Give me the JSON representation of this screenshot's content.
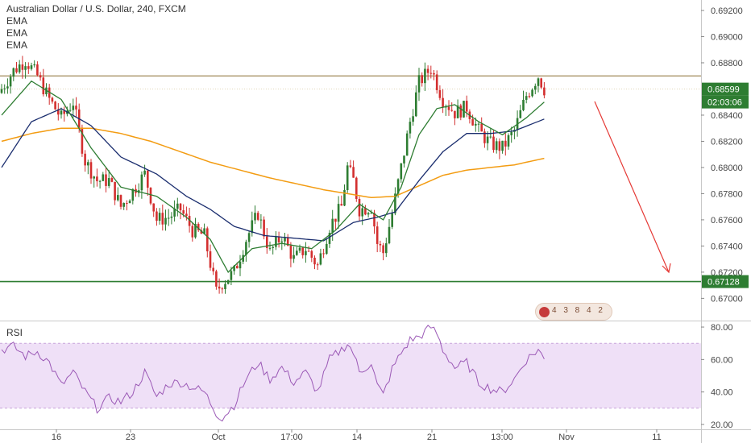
{
  "legend": {
    "title": "Australian Dollar / U.S. Dollar, 240, FXCM",
    "ema1": "EMA",
    "ema2": "EMA",
    "ema3": "EMA"
  },
  "rsi_label": "RSI",
  "calendar_text": "4 3 8 4 2",
  "colors": {
    "up": "#2e7d32",
    "down": "#d32f2f",
    "ema_fast": "#2e7d32",
    "ema_mid": "#1a2d6e",
    "ema_slow": "#f39c12",
    "support": "#2e7d32",
    "resistance": "#a08a5a",
    "arrow": "#e53935",
    "rsi_line": "#9b59b6",
    "rsi_band": "#efe0f7"
  },
  "badges": {
    "last_price": "0.68599",
    "countdown": "02:03:06",
    "support_level": "0.67128"
  },
  "chart_data": [
    {
      "type": "candlestick",
      "title": "Australian Dollar / U.S. Dollar, 240, FXCM",
      "ylim": [
        0.6683,
        0.6928
      ],
      "yticks": [
        "0.69200",
        "0.69000",
        "0.68800",
        "0.68400",
        "0.68200",
        "0.68000",
        "0.67800",
        "0.67600",
        "0.67400",
        "0.67200",
        "0.67000"
      ],
      "x_ticks": [
        "16",
        "23",
        "Oct",
        "17:00",
        "14",
        "21",
        "13:00",
        "Nov",
        "11"
      ],
      "resistance_level": 0.687,
      "support_level": 0.67128,
      "last_price": 0.68599,
      "anchors": [
        [
          0,
          0.686
        ],
        [
          4,
          0.6874
        ],
        [
          8,
          0.6882
        ],
        [
          12,
          0.687
        ],
        [
          16,
          0.6852
        ],
        [
          20,
          0.6838
        ],
        [
          24,
          0.685
        ],
        [
          28,
          0.6805
        ],
        [
          32,
          0.679
        ],
        [
          36,
          0.679
        ],
        [
          40,
          0.677
        ],
        [
          44,
          0.6782
        ],
        [
          48,
          0.6795
        ],
        [
          52,
          0.676
        ],
        [
          56,
          0.6762
        ],
        [
          60,
          0.6768
        ],
        [
          64,
          0.6752
        ],
        [
          68,
          0.6748
        ],
        [
          72,
          0.6705
        ],
        [
          74,
          0.6712
        ],
        [
          78,
          0.672
        ],
        [
          82,
          0.6745
        ],
        [
          86,
          0.6765
        ],
        [
          90,
          0.6735
        ],
        [
          94,
          0.6748
        ],
        [
          98,
          0.673
        ],
        [
          102,
          0.6738
        ],
        [
          106,
          0.6725
        ],
        [
          110,
          0.6755
        ],
        [
          114,
          0.677
        ],
        [
          116,
          0.68
        ],
        [
          118,
          0.679
        ],
        [
          120,
          0.6768
        ],
        [
          124,
          0.677
        ],
        [
          126,
          0.6742
        ],
        [
          128,
          0.6735
        ],
        [
          131,
          0.6765
        ],
        [
          134,
          0.68
        ],
        [
          137,
          0.6835
        ],
        [
          140,
          0.6865
        ],
        [
          144,
          0.6876
        ],
        [
          148,
          0.6852
        ],
        [
          152,
          0.6842
        ],
        [
          156,
          0.6846
        ],
        [
          160,
          0.6828
        ],
        [
          164,
          0.6818
        ],
        [
          168,
          0.6815
        ],
        [
          172,
          0.6828
        ],
        [
          176,
          0.6855
        ],
        [
          180,
          0.687
        ],
        [
          182,
          0.686
        ]
      ],
      "ema_fast": [
        [
          0,
          0.684
        ],
        [
          10,
          0.6866
        ],
        [
          20,
          0.6852
        ],
        [
          30,
          0.6815
        ],
        [
          40,
          0.6785
        ],
        [
          52,
          0.6778
        ],
        [
          62,
          0.6762
        ],
        [
          70,
          0.6745
        ],
        [
          76,
          0.672
        ],
        [
          84,
          0.6738
        ],
        [
          94,
          0.6742
        ],
        [
          104,
          0.6738
        ],
        [
          112,
          0.6752
        ],
        [
          120,
          0.6772
        ],
        [
          128,
          0.676
        ],
        [
          134,
          0.6785
        ],
        [
          140,
          0.6825
        ],
        [
          146,
          0.6845
        ],
        [
          152,
          0.6848
        ],
        [
          160,
          0.6835
        ],
        [
          168,
          0.6825
        ],
        [
          176,
          0.6838
        ],
        [
          182,
          0.685
        ]
      ],
      "ema_mid": [
        [
          0,
          0.68
        ],
        [
          10,
          0.6835
        ],
        [
          20,
          0.6845
        ],
        [
          30,
          0.6832
        ],
        [
          40,
          0.6808
        ],
        [
          52,
          0.6795
        ],
        [
          62,
          0.6778
        ],
        [
          70,
          0.6768
        ],
        [
          78,
          0.6755
        ],
        [
          88,
          0.6748
        ],
        [
          98,
          0.6746
        ],
        [
          108,
          0.6744
        ],
        [
          118,
          0.6758
        ],
        [
          126,
          0.6762
        ],
        [
          132,
          0.6766
        ],
        [
          140,
          0.679
        ],
        [
          148,
          0.6812
        ],
        [
          156,
          0.6826
        ],
        [
          164,
          0.6826
        ],
        [
          172,
          0.6828
        ],
        [
          182,
          0.6837
        ]
      ],
      "ema_slow": [
        [
          0,
          0.682
        ],
        [
          10,
          0.6826
        ],
        [
          20,
          0.683
        ],
        [
          30,
          0.683
        ],
        [
          40,
          0.6826
        ],
        [
          50,
          0.682
        ],
        [
          60,
          0.6812
        ],
        [
          70,
          0.6804
        ],
        [
          80,
          0.6798
        ],
        [
          90,
          0.6792
        ],
        [
          100,
          0.6787
        ],
        [
          108,
          0.6783
        ],
        [
          116,
          0.678
        ],
        [
          124,
          0.6777
        ],
        [
          132,
          0.6778
        ],
        [
          140,
          0.6786
        ],
        [
          148,
          0.6794
        ],
        [
          156,
          0.6798
        ],
        [
          164,
          0.68
        ],
        [
          172,
          0.6802
        ],
        [
          182,
          0.6807
        ]
      ]
    },
    {
      "type": "line",
      "title": "RSI",
      "ylim": [
        17,
        83
      ],
      "yticks": [
        "80.00",
        "60.00",
        "40.00",
        "20.00"
      ],
      "band": [
        30,
        70
      ],
      "values": [
        [
          0,
          66
        ],
        [
          4,
          68
        ],
        [
          8,
          62
        ],
        [
          12,
          65
        ],
        [
          16,
          58
        ],
        [
          20,
          44
        ],
        [
          24,
          52
        ],
        [
          28,
          40
        ],
        [
          32,
          30
        ],
        [
          36,
          36
        ],
        [
          40,
          34
        ],
        [
          44,
          40
        ],
        [
          48,
          52
        ],
        [
          52,
          37
        ],
        [
          56,
          45
        ],
        [
          60,
          46
        ],
        [
          64,
          43
        ],
        [
          68,
          40
        ],
        [
          72,
          27
        ],
        [
          74,
          24
        ],
        [
          78,
          32
        ],
        [
          82,
          48
        ],
        [
          86,
          58
        ],
        [
          90,
          48
        ],
        [
          94,
          55
        ],
        [
          98,
          46
        ],
        [
          102,
          52
        ],
        [
          106,
          40
        ],
        [
          110,
          60
        ],
        [
          114,
          66
        ],
        [
          116,
          70
        ],
        [
          118,
          64
        ],
        [
          120,
          52
        ],
        [
          124,
          58
        ],
        [
          126,
          44
        ],
        [
          128,
          38
        ],
        [
          131,
          54
        ],
        [
          134,
          64
        ],
        [
          137,
          72
        ],
        [
          140,
          74
        ],
        [
          144,
          80
        ],
        [
          146,
          76
        ],
        [
          148,
          66
        ],
        [
          152,
          55
        ],
        [
          156,
          58
        ],
        [
          160,
          46
        ],
        [
          164,
          42
        ],
        [
          168,
          40
        ],
        [
          172,
          48
        ],
        [
          176,
          60
        ],
        [
          180,
          66
        ],
        [
          182,
          60
        ]
      ]
    }
  ]
}
